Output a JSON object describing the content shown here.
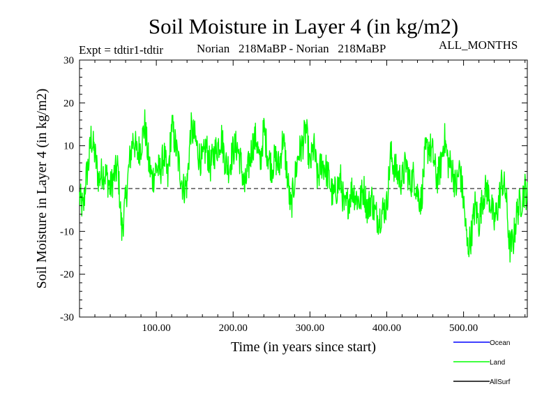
{
  "chart_data": {
    "type": "line",
    "title": "Soil Moisture in Layer 4 (in kg/m2)",
    "experiment": "Expt = tdtir1-tdtir",
    "comparison": "Norian   218MaBP - Norian   218MaBP",
    "months": "ALL_MONTHS",
    "xlabel": "Time (in years since start)",
    "ylabel": "Soil Moisture in Layer 4 (in kg/m2)",
    "xlim": [
      0,
      583
    ],
    "ylim": [
      -30,
      30
    ],
    "x_ticks": [
      100,
      200,
      300,
      400,
      500
    ],
    "x_tick_labels": [
      "100.00",
      "200.00",
      "300.00",
      "400.00",
      "500.00"
    ],
    "y_ticks": [
      -30,
      -20,
      -10,
      0,
      10,
      20,
      30
    ],
    "y_tick_labels": [
      "-30",
      "-20",
      "-10",
      "0",
      "10",
      "20",
      "30"
    ],
    "zero_line": true,
    "legend": [
      {
        "name": "Ocean",
        "color": "#0000ff"
      },
      {
        "name": "Land",
        "color": "#00ff00"
      },
      {
        "name": "AllSurf",
        "color": "#000000"
      }
    ],
    "series": [
      {
        "name": "Land",
        "color": "#00ff00",
        "anchors_x": [
          0,
          5,
          8,
          12,
          15,
          20,
          25,
          30,
          35,
          40,
          45,
          50,
          55,
          60,
          65,
          70,
          75,
          80,
          85,
          90,
          95,
          100,
          105,
          110,
          115,
          120,
          125,
          130,
          135,
          140,
          145,
          150,
          155,
          160,
          165,
          170,
          175,
          180,
          185,
          190,
          195,
          200,
          205,
          210,
          215,
          220,
          225,
          230,
          235,
          240,
          245,
          250,
          255,
          260,
          265,
          270,
          275,
          280,
          285,
          290,
          295,
          300,
          305,
          310,
          315,
          320,
          325,
          330,
          335,
          340,
          345,
          350,
          355,
          360,
          365,
          370,
          375,
          380,
          385,
          390,
          395,
          400,
          405,
          410,
          415,
          420,
          425,
          430,
          435,
          440,
          445,
          450,
          455,
          460,
          465,
          470,
          475,
          480,
          485,
          490,
          495,
          500,
          505,
          510,
          515,
          520,
          525,
          530,
          535,
          540,
          545,
          550,
          555,
          560,
          565,
          570,
          575,
          580,
          583
        ],
        "anchors_y": [
          -2,
          -5,
          2,
          6,
          12,
          8,
          2,
          4,
          3,
          0,
          3,
          5,
          -10,
          -3,
          6,
          12,
          8,
          10,
          15,
          6,
          2,
          5,
          4,
          8,
          2,
          15,
          10,
          5,
          0,
          1,
          14,
          12,
          8,
          6,
          10,
          5,
          8,
          10,
          12,
          6,
          5,
          9,
          10,
          6,
          0,
          5,
          10,
          12,
          5,
          14,
          8,
          5,
          7,
          5,
          12,
          4,
          -5,
          2,
          8,
          10,
          14,
          5,
          10,
          2,
          6,
          5,
          2,
          -2,
          0,
          2,
          -5,
          -3,
          0,
          -2,
          -3,
          0,
          -5,
          -2,
          -6,
          -7,
          -5,
          -4,
          8,
          5,
          3,
          2,
          6,
          1,
          3,
          -1,
          -3,
          8,
          10,
          8,
          2,
          5,
          12,
          6,
          5,
          0,
          5,
          -3,
          -14,
          -11,
          -4,
          -8,
          -2,
          0,
          -3,
          -8,
          -4,
          2,
          -1,
          -14,
          -12,
          -5,
          -3,
          0,
          -2
        ],
        "noise_amplitude": 4,
        "sample_step": 0.5
      }
    ]
  }
}
